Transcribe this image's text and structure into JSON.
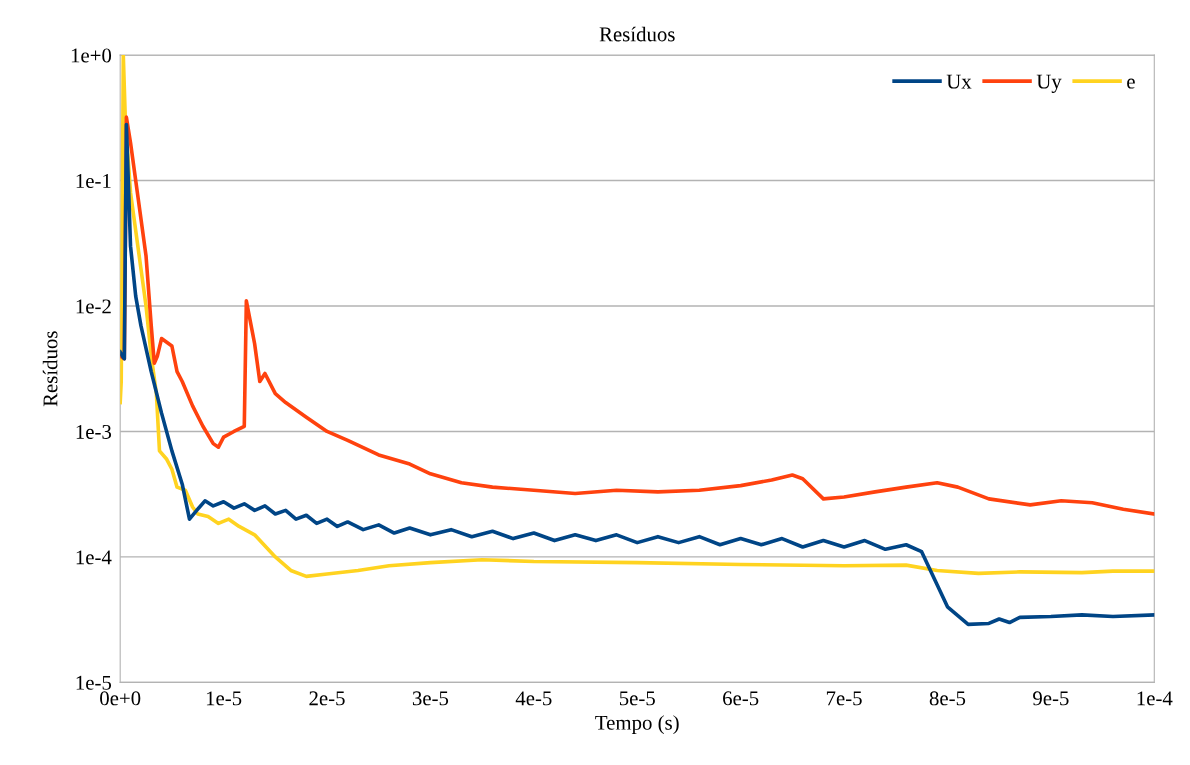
{
  "chart_data": {
    "type": "line",
    "title": "Resíduos",
    "xlabel": "Tempo (s)",
    "ylabel": "Resíduos",
    "log": "y",
    "grid": "y",
    "legend": "top right",
    "marker": "none",
    "line_style": "solid",
    "xlim": [
      0,
      0.0001
    ],
    "ylim": [
      1e-05,
      1
    ],
    "xticks": [
      {
        "value": 0,
        "label": "0e+0"
      },
      {
        "value": 1e-05,
        "label": "1e-5"
      },
      {
        "value": 2e-05,
        "label": "2e-5"
      },
      {
        "value": 3e-05,
        "label": "3e-5"
      },
      {
        "value": 4e-05,
        "label": "4e-5"
      },
      {
        "value": 5e-05,
        "label": "5e-5"
      },
      {
        "value": 6e-05,
        "label": "6e-5"
      },
      {
        "value": 7e-05,
        "label": "7e-5"
      },
      {
        "value": 8e-05,
        "label": "8e-5"
      },
      {
        "value": 9e-05,
        "label": "9e-5"
      },
      {
        "value": 0.0001,
        "label": "1e-4"
      }
    ],
    "yticks": [
      {
        "value": 1e-05,
        "label": "1e-5"
      },
      {
        "value": 0.0001,
        "label": "1e-4"
      },
      {
        "value": 0.001,
        "label": "1e-3"
      },
      {
        "value": 0.01,
        "label": "1e-2"
      },
      {
        "value": 0.1,
        "label": "1e-1"
      },
      {
        "value": 1,
        "label": "1e+0"
      }
    ],
    "series": [
      {
        "name": "Ux",
        "color": "#004586",
        "x": [
          0,
          2e-07,
          4e-07,
          6e-07,
          1e-06,
          1.5e-06,
          2e-06,
          3e-06,
          4e-06,
          5e-06,
          6e-06,
          6.7e-06,
          7.5e-06,
          8.2e-06,
          9e-06,
          1e-05,
          1.1e-05,
          1.2e-05,
          1.3e-05,
          1.4e-05,
          1.5e-05,
          1.6e-05,
          1.7e-05,
          1.8e-05,
          1.9e-05,
          2e-05,
          2.1e-05,
          2.2e-05,
          2.35e-05,
          2.5e-05,
          2.65e-05,
          2.8e-05,
          3e-05,
          3.2e-05,
          3.4e-05,
          3.6e-05,
          3.8e-05,
          4e-05,
          4.2e-05,
          4.4e-05,
          4.6e-05,
          4.8e-05,
          5e-05,
          5.2e-05,
          5.4e-05,
          5.6e-05,
          5.8e-05,
          6e-05,
          6.2e-05,
          6.4e-05,
          6.6e-05,
          6.8e-05,
          7e-05,
          7.2e-05,
          7.4e-05,
          7.6e-05,
          7.75e-05,
          7.9e-05,
          8e-05,
          8.1e-05,
          8.2e-05,
          8.4e-05,
          8.5e-05,
          8.6e-05,
          8.7e-05,
          9e-05,
          9.3e-05,
          9.6e-05,
          0.0001
        ],
        "values": [
          0.0043,
          0.004,
          0.0038,
          0.28,
          0.03,
          0.012,
          0.007,
          0.003,
          0.0014,
          0.0007,
          0.00038,
          0.0002,
          0.00024,
          0.00028,
          0.000255,
          0.000275,
          0.000245,
          0.000265,
          0.000235,
          0.000255,
          0.00022,
          0.000235,
          0.0002,
          0.000215,
          0.000185,
          0.0002,
          0.000175,
          0.00019,
          0.000165,
          0.00018,
          0.000155,
          0.00017,
          0.00015,
          0.000165,
          0.000145,
          0.00016,
          0.00014,
          0.000155,
          0.000135,
          0.00015,
          0.000135,
          0.00015,
          0.00013,
          0.000145,
          0.00013,
          0.000145,
          0.000125,
          0.00014,
          0.000125,
          0.00014,
          0.00012,
          0.000135,
          0.00012,
          0.000135,
          0.000115,
          0.000125,
          0.00011,
          6e-05,
          4e-05,
          3.4e-05,
          2.9e-05,
          2.95e-05,
          3.2e-05,
          3e-05,
          3.3e-05,
          3.35e-05,
          3.45e-05,
          3.35e-05,
          3.45e-05
        ]
      },
      {
        "name": "Uy",
        "color": "#ff420e",
        "x": [
          0,
          4e-07,
          6e-07,
          1e-06,
          1.5e-06,
          2e-06,
          2.5e-06,
          3e-06,
          3.3e-06,
          3.6e-06,
          4e-06,
          5e-06,
          5.5e-06,
          6e-06,
          7e-06,
          8e-06,
          9e-06,
          9.5e-06,
          1e-05,
          1.1e-05,
          1.2e-05,
          1.22e-05,
          1.3e-05,
          1.35e-05,
          1.4e-05,
          1.5e-05,
          1.6e-05,
          1.8e-05,
          2e-05,
          2.2e-05,
          2.5e-05,
          2.8e-05,
          3e-05,
          3.3e-05,
          3.6e-05,
          4e-05,
          4.4e-05,
          4.8e-05,
          5.2e-05,
          5.6e-05,
          6e-05,
          6.3e-05,
          6.5e-05,
          6.6e-05,
          6.8e-05,
          7e-05,
          7.3e-05,
          7.6e-05,
          7.9e-05,
          8.1e-05,
          8.4e-05,
          8.8e-05,
          9.1e-05,
          9.4e-05,
          9.7e-05,
          0.0001
        ],
        "values": [
          0.004,
          0.0038,
          0.32,
          0.2,
          0.1,
          0.05,
          0.025,
          0.007,
          0.0035,
          0.004,
          0.0055,
          0.0048,
          0.003,
          0.0025,
          0.0016,
          0.0011,
          0.0008,
          0.00075,
          0.0009,
          0.001,
          0.0011,
          0.011,
          0.005,
          0.0025,
          0.0029,
          0.002,
          0.0017,
          0.0013,
          0.001,
          0.00085,
          0.00065,
          0.00055,
          0.00046,
          0.00039,
          0.00036,
          0.00034,
          0.00032,
          0.00034,
          0.00033,
          0.00034,
          0.00037,
          0.00041,
          0.00045,
          0.00042,
          0.00029,
          0.0003,
          0.00033,
          0.00036,
          0.00039,
          0.00036,
          0.00029,
          0.00026,
          0.00028,
          0.00027,
          0.00024,
          0.00022
        ]
      },
      {
        "name": "e",
        "color": "#ffd320",
        "x": [
          0,
          1e-07,
          3e-07,
          5e-07,
          1e-06,
          1.5e-06,
          2e-06,
          2.5e-06,
          3e-06,
          3.5e-06,
          3.8e-06,
          4.5e-06,
          5e-06,
          5.5e-06,
          6.3e-06,
          7e-06,
          7.5e-06,
          8.5e-06,
          9.5e-06,
          1.05e-05,
          1.15e-05,
          1.3e-05,
          1.5e-05,
          1.65e-05,
          1.8e-05,
          2e-05,
          2.3e-05,
          2.6e-05,
          3e-05,
          3.5e-05,
          4e-05,
          5e-05,
          6e-05,
          7e-05,
          7.6e-05,
          7.9e-05,
          8.3e-05,
          8.7e-05,
          9.3e-05,
          9.6e-05,
          0.0001
        ],
        "values": [
          0.0017,
          0.0025,
          1.0,
          0.3,
          0.08,
          0.04,
          0.02,
          0.01,
          0.004,
          0.002,
          0.0007,
          0.0006,
          0.0005,
          0.00036,
          0.00034,
          0.00025,
          0.00022,
          0.00021,
          0.000185,
          0.0002,
          0.000175,
          0.00015,
          0.0001,
          7.8e-05,
          7e-05,
          7.3e-05,
          7.8e-05,
          8.5e-05,
          9e-05,
          9.5e-05,
          9.2e-05,
          9e-05,
          8.7e-05,
          8.5e-05,
          8.6e-05,
          7.8e-05,
          7.4e-05,
          7.6e-05,
          7.5e-05,
          7.7e-05,
          7.7e-05
        ]
      }
    ]
  }
}
